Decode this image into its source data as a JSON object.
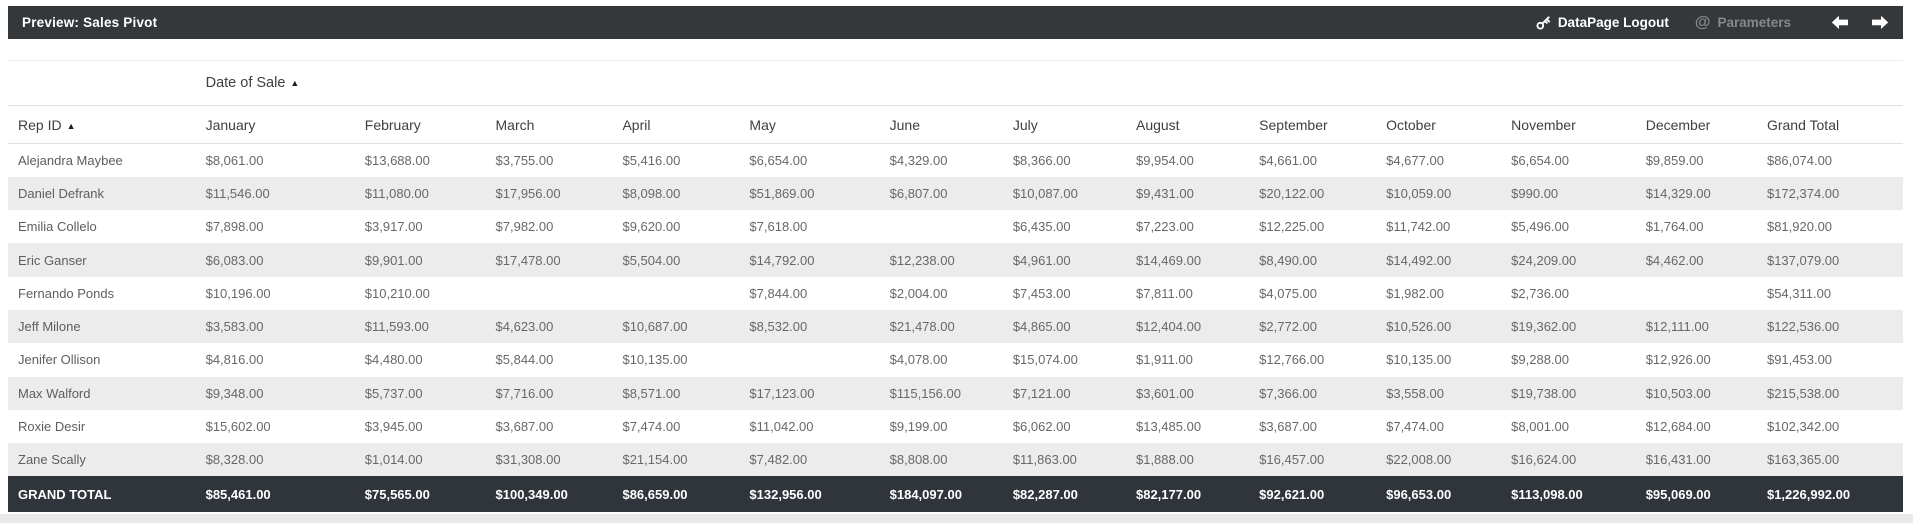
{
  "topbar": {
    "title": "Preview: Sales Pivot",
    "logout_label": "DataPage Logout",
    "parameters_label": "Parameters"
  },
  "icons": {
    "key": "key-icon",
    "at_glyph": "@",
    "sort_asc": "▲",
    "arrow_left": "previous-arrow",
    "arrow_right": "next-arrow"
  },
  "colors": {
    "topbar_bg": "#34383b",
    "grand_total_row_bg": "#2f353a",
    "row_stripe": "#ececec",
    "header_rule": "#e0e0e0"
  },
  "table": {
    "group_header": "Date of Sale",
    "row_header": "Rep ID",
    "columns": [
      "January",
      "February",
      "March",
      "April",
      "May",
      "June",
      "July",
      "August",
      "September",
      "October",
      "November",
      "December",
      "Grand Total"
    ],
    "rows": [
      {
        "name": "Alejandra Maybee",
        "values": [
          "$8,061.00",
          "$13,688.00",
          "$3,755.00",
          "$5,416.00",
          "$6,654.00",
          "$4,329.00",
          "$8,366.00",
          "$9,954.00",
          "$4,661.00",
          "$4,677.00",
          "$6,654.00",
          "$9,859.00",
          "$86,074.00"
        ]
      },
      {
        "name": "Daniel Defrank",
        "values": [
          "$11,546.00",
          "$11,080.00",
          "$17,956.00",
          "$8,098.00",
          "$51,869.00",
          "$6,807.00",
          "$10,087.00",
          "$9,431.00",
          "$20,122.00",
          "$10,059.00",
          "$990.00",
          "$14,329.00",
          "$172,374.00"
        ]
      },
      {
        "name": "Emilia Collelo",
        "values": [
          "$7,898.00",
          "$3,917.00",
          "$7,982.00",
          "$9,620.00",
          "$7,618.00",
          "",
          "$6,435.00",
          "$7,223.00",
          "$12,225.00",
          "$11,742.00",
          "$5,496.00",
          "$1,764.00",
          "$81,920.00"
        ]
      },
      {
        "name": "Eric Ganser",
        "values": [
          "$6,083.00",
          "$9,901.00",
          "$17,478.00",
          "$5,504.00",
          "$14,792.00",
          "$12,238.00",
          "$4,961.00",
          "$14,469.00",
          "$8,490.00",
          "$14,492.00",
          "$24,209.00",
          "$4,462.00",
          "$137,079.00"
        ]
      },
      {
        "name": "Fernando Ponds",
        "values": [
          "$10,196.00",
          "$10,210.00",
          "",
          "",
          "$7,844.00",
          "$2,004.00",
          "$7,453.00",
          "$7,811.00",
          "$4,075.00",
          "$1,982.00",
          "$2,736.00",
          "",
          "$54,311.00"
        ]
      },
      {
        "name": "Jeff Milone",
        "values": [
          "$3,583.00",
          "$11,593.00",
          "$4,623.00",
          "$10,687.00",
          "$8,532.00",
          "$21,478.00",
          "$4,865.00",
          "$12,404.00",
          "$2,772.00",
          "$10,526.00",
          "$19,362.00",
          "$12,111.00",
          "$122,536.00"
        ]
      },
      {
        "name": "Jenifer Ollison",
        "values": [
          "$4,816.00",
          "$4,480.00",
          "$5,844.00",
          "$10,135.00",
          "",
          "$4,078.00",
          "$15,074.00",
          "$1,911.00",
          "$12,766.00",
          "$10,135.00",
          "$9,288.00",
          "$12,926.00",
          "$91,453.00"
        ]
      },
      {
        "name": "Max Walford",
        "values": [
          "$9,348.00",
          "$5,737.00",
          "$7,716.00",
          "$8,571.00",
          "$17,123.00",
          "$115,156.00",
          "$7,121.00",
          "$3,601.00",
          "$7,366.00",
          "$3,558.00",
          "$19,738.00",
          "$10,503.00",
          "$215,538.00"
        ]
      },
      {
        "name": "Roxie Desir",
        "values": [
          "$15,602.00",
          "$3,945.00",
          "$3,687.00",
          "$7,474.00",
          "$11,042.00",
          "$9,199.00",
          "$6,062.00",
          "$13,485.00",
          "$3,687.00",
          "$7,474.00",
          "$8,001.00",
          "$12,684.00",
          "$102,342.00"
        ]
      },
      {
        "name": "Zane Scally",
        "values": [
          "$8,328.00",
          "$1,014.00",
          "$31,308.00",
          "$21,154.00",
          "$7,482.00",
          "$8,808.00",
          "$11,863.00",
          "$1,888.00",
          "$16,457.00",
          "$22,008.00",
          "$16,624.00",
          "$16,431.00",
          "$163,365.00"
        ]
      }
    ],
    "grand_total": {
      "label": "GRAND TOTAL",
      "values": [
        "$85,461.00",
        "$75,565.00",
        "$100,349.00",
        "$86,659.00",
        "$132,956.00",
        "$184,097.00",
        "$82,287.00",
        "$82,177.00",
        "$92,621.00",
        "$96,653.00",
        "$113,098.00",
        "$95,069.00",
        "$1,226,992.00"
      ]
    }
  }
}
